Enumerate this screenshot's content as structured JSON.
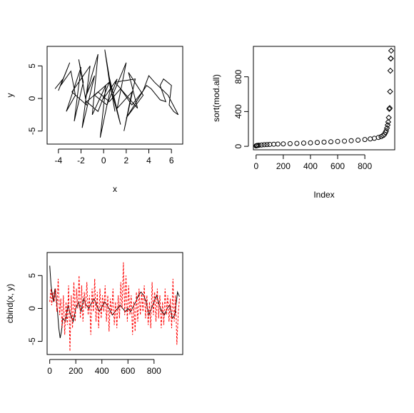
{
  "chart_data": [
    {
      "id": "p1",
      "type": "line",
      "xlabel": "x",
      "ylabel": "y",
      "xlim": [
        -5,
        7
      ],
      "ylim": [
        -7,
        8
      ],
      "xticks": [
        -4,
        -2,
        0,
        2,
        4,
        6
      ],
      "yticks": [
        -5,
        0,
        5
      ],
      "series": [
        {
          "color": "#000000",
          "points": [
            [
              -4.3,
              1.5
            ],
            [
              -3.6,
              3.0
            ],
            [
              -4.0,
              1.2
            ],
            [
              -3.0,
              5.5
            ],
            [
              -3.8,
              2.0
            ],
            [
              -2.9,
              4.2
            ],
            [
              -2.5,
              0.5
            ],
            [
              -3.3,
              -2.0
            ],
            [
              -2.0,
              4.8
            ],
            [
              -2.6,
              -3.5
            ],
            [
              -1.8,
              2.5
            ],
            [
              -2.2,
              6.0
            ],
            [
              -1.5,
              -1.0
            ],
            [
              -2.8,
              1.0
            ],
            [
              -1.2,
              5.0
            ],
            [
              -1.9,
              -4.5
            ],
            [
              -0.8,
              3.5
            ],
            [
              -1.6,
              0.2
            ],
            [
              -0.5,
              6.8
            ],
            [
              -1.0,
              -2.5
            ],
            [
              0.2,
              2.0
            ],
            [
              -0.3,
              -6.0
            ],
            [
              0.6,
              1.5
            ],
            [
              0.1,
              7.5
            ],
            [
              1.0,
              -2.0
            ],
            [
              0.4,
              4.0
            ],
            [
              1.5,
              -4.0
            ],
            [
              0.8,
              0.5
            ],
            [
              2.0,
              5.5
            ],
            [
              1.2,
              -1.5
            ],
            [
              2.5,
              1.0
            ],
            [
              1.8,
              -5.0
            ],
            [
              2.8,
              3.0
            ],
            [
              1.0,
              2.5
            ],
            [
              3.0,
              -1.5
            ],
            [
              2.2,
              4.0
            ],
            [
              3.5,
              0.5
            ],
            [
              2.0,
              -3.0
            ],
            [
              3.8,
              2.0
            ],
            [
              4.2,
              1.5
            ],
            [
              5.0,
              -0.2
            ],
            [
              5.5,
              -0.5
            ],
            [
              5.0,
              2.0
            ],
            [
              5.3,
              3.0
            ],
            [
              6.0,
              2.0
            ],
            [
              5.8,
              -1.0
            ],
            [
              6.2,
              -2.0
            ],
            [
              6.6,
              -2.5
            ],
            [
              5.7,
              0.5
            ],
            [
              4.5,
              2.5
            ],
            [
              4.0,
              3.5
            ],
            [
              3.5,
              1.2
            ],
            [
              2.5,
              -1.0
            ],
            [
              1.5,
              1.5
            ],
            [
              0.5,
              -0.5
            ],
            [
              -0.5,
              1.0
            ],
            [
              -1.5,
              -0.5
            ],
            [
              -0.5,
              -2.0
            ],
            [
              0.5,
              2.5
            ],
            [
              -0.8,
              0.5
            ],
            [
              0.3,
              -1.0
            ],
            [
              1.2,
              3.0
            ],
            [
              0.0,
              0.0
            ]
          ]
        }
      ]
    },
    {
      "id": "p2",
      "type": "scatter",
      "xlabel": "Index",
      "ylabel": "sort(mod.all)",
      "xlim": [
        -20,
        1020
      ],
      "ylim": [
        -40,
        1150
      ],
      "xticks": [
        0,
        200,
        400,
        600,
        800
      ],
      "yticks": [
        0,
        400,
        800
      ],
      "marker": "circle-left diamond-right",
      "series": [
        {
          "color": "#000000",
          "points": [
            [
              0,
              5
            ],
            [
              5,
              8
            ],
            [
              10,
              10
            ],
            [
              20,
              12
            ],
            [
              40,
              15
            ],
            [
              60,
              18
            ],
            [
              80,
              20
            ],
            [
              100,
              22
            ],
            [
              130,
              24
            ],
            [
              160,
              26
            ],
            [
              200,
              28
            ],
            [
              250,
              31
            ],
            [
              300,
              34
            ],
            [
              350,
              37
            ],
            [
              400,
              40
            ],
            [
              450,
              44
            ],
            [
              500,
              48
            ],
            [
              550,
              52
            ],
            [
              600,
              56
            ],
            [
              650,
              60
            ],
            [
              700,
              65
            ],
            [
              750,
              71
            ],
            [
              800,
              78
            ],
            [
              840,
              85
            ],
            [
              870,
              92
            ],
            [
              900,
              102
            ],
            [
              920,
              112
            ],
            [
              935,
              125
            ],
            [
              945,
              140
            ],
            [
              952,
              160
            ],
            [
              958,
              180
            ],
            [
              963,
              210
            ],
            [
              968,
              245
            ],
            [
              972,
              280
            ],
            [
              976,
              330
            ],
            [
              980,
              430
            ],
            [
              983,
              440
            ],
            [
              986,
              630
            ],
            [
              988,
              870
            ],
            [
              990,
              1010
            ],
            [
              992,
              1010
            ],
            [
              994,
              1100
            ]
          ]
        }
      ]
    },
    {
      "id": "p3",
      "type": "line",
      "xlabel": "",
      "ylabel": "cbind(x, y)",
      "xlim": [
        -20,
        1020
      ],
      "ylim": [
        -7,
        8.5
      ],
      "xticks": [
        0,
        200,
        400,
        600,
        800
      ],
      "yticks": [
        -5,
        0,
        5
      ],
      "series": [
        {
          "color": "#000000",
          "points": [
            [
              0,
              6.5
            ],
            [
              10,
              3.5
            ],
            [
              20,
              2.0
            ],
            [
              30,
              1.0
            ],
            [
              40,
              3.0
            ],
            [
              50,
              1.5
            ],
            [
              60,
              -0.5
            ],
            [
              70,
              -3.0
            ],
            [
              80,
              -4.5
            ],
            [
              90,
              -3.5
            ],
            [
              100,
              -1.5
            ],
            [
              120,
              -2.0
            ],
            [
              140,
              0.5
            ],
            [
              160,
              -1.0
            ],
            [
              180,
              -2.0
            ],
            [
              200,
              0.0
            ],
            [
              220,
              1.0
            ],
            [
              240,
              -0.5
            ],
            [
              260,
              1.5
            ],
            [
              280,
              0.5
            ],
            [
              300,
              0.0
            ],
            [
              320,
              0.8
            ],
            [
              340,
              1.5
            ],
            [
              360,
              0.5
            ],
            [
              380,
              -0.5
            ],
            [
              400,
              0.2
            ],
            [
              420,
              1.0
            ],
            [
              440,
              0.5
            ],
            [
              460,
              -0.2
            ],
            [
              480,
              -1.0
            ],
            [
              500,
              -0.5
            ],
            [
              520,
              0.0
            ],
            [
              540,
              0.5
            ],
            [
              560,
              0.0
            ],
            [
              580,
              -0.5
            ],
            [
              600,
              0.0
            ],
            [
              620,
              -0.5
            ],
            [
              640,
              0.3
            ],
            [
              660,
              1.0
            ],
            [
              680,
              2.0
            ],
            [
              700,
              2.5
            ],
            [
              720,
              2.0
            ],
            [
              740,
              1.0
            ],
            [
              760,
              -1.0
            ],
            [
              780,
              0.0
            ],
            [
              800,
              1.0
            ],
            [
              820,
              2.0
            ],
            [
              840,
              0.5
            ],
            [
              860,
              -0.5
            ],
            [
              880,
              -1.0
            ],
            [
              900,
              0.0
            ],
            [
              920,
              0.5
            ],
            [
              940,
              -1.5
            ],
            [
              960,
              -1.0
            ],
            [
              980,
              2.5
            ],
            [
              995,
              1.8
            ]
          ]
        },
        {
          "color": "#ff0000",
          "points": [
            [
              0,
              1.0
            ],
            [
              10,
              3.0
            ],
            [
              15,
              0.5
            ],
            [
              25,
              2.5
            ],
            [
              35,
              1.0
            ],
            [
              45,
              3.0
            ],
            [
              55,
              -0.5
            ],
            [
              65,
              4.5
            ],
            [
              75,
              -1.0
            ],
            [
              85,
              1.5
            ],
            [
              95,
              -3.0
            ],
            [
              105,
              2.0
            ],
            [
              115,
              -4.0
            ],
            [
              125,
              1.0
            ],
            [
              135,
              -2.5
            ],
            [
              145,
              3.5
            ],
            [
              155,
              -6.5
            ],
            [
              165,
              2.0
            ],
            [
              175,
              -3.0
            ],
            [
              185,
              4.0
            ],
            [
              195,
              -2.0
            ],
            [
              205,
              3.0
            ],
            [
              215,
              0.0
            ],
            [
              225,
              5.0
            ],
            [
              235,
              -1.5
            ],
            [
              245,
              3.5
            ],
            [
              255,
              -2.0
            ],
            [
              265,
              2.5
            ],
            [
              275,
              0.0
            ],
            [
              285,
              4.0
            ],
            [
              295,
              -1.0
            ],
            [
              305,
              2.0
            ],
            [
              315,
              -4.0
            ],
            [
              325,
              3.0
            ],
            [
              335,
              -0.5
            ],
            [
              345,
              4.5
            ],
            [
              355,
              -2.0
            ],
            [
              365,
              2.5
            ],
            [
              375,
              -3.0
            ],
            [
              385,
              3.0
            ],
            [
              395,
              -1.5
            ],
            [
              405,
              2.0
            ],
            [
              415,
              -0.5
            ],
            [
              425,
              3.5
            ],
            [
              435,
              -2.0
            ],
            [
              445,
              2.0
            ],
            [
              455,
              -3.5
            ],
            [
              465,
              1.5
            ],
            [
              475,
              -1.0
            ],
            [
              485,
              3.0
            ],
            [
              495,
              -2.5
            ],
            [
              505,
              1.0
            ],
            [
              515,
              -3.0
            ],
            [
              525,
              2.0
            ],
            [
              535,
              -1.5
            ],
            [
              545,
              4.0
            ],
            [
              555,
              0.0
            ],
            [
              565,
              7.0
            ],
            [
              575,
              -1.0
            ],
            [
              585,
              5.0
            ],
            [
              595,
              -2.0
            ],
            [
              605,
              3.5
            ],
            [
              615,
              -1.0
            ],
            [
              625,
              2.0
            ],
            [
              635,
              -4.0
            ],
            [
              645,
              1.0
            ],
            [
              655,
              -3.5
            ],
            [
              665,
              2.5
            ],
            [
              675,
              -2.0
            ],
            [
              685,
              3.0
            ],
            [
              695,
              -1.0
            ],
            [
              705,
              2.5
            ],
            [
              715,
              -0.5
            ],
            [
              725,
              3.5
            ],
            [
              735,
              -1.5
            ],
            [
              745,
              2.0
            ],
            [
              755,
              -2.5
            ],
            [
              765,
              1.0
            ],
            [
              775,
              -3.0
            ],
            [
              785,
              4.0
            ],
            [
              795,
              -1.0
            ],
            [
              805,
              2.5
            ],
            [
              815,
              -2.0
            ],
            [
              825,
              3.0
            ],
            [
              835,
              -1.5
            ],
            [
              845,
              2.0
            ],
            [
              855,
              -3.0
            ],
            [
              865,
              1.0
            ],
            [
              875,
              -2.5
            ],
            [
              885,
              3.0
            ],
            [
              895,
              -1.0
            ],
            [
              905,
              2.0
            ],
            [
              915,
              -2.0
            ],
            [
              925,
              1.5
            ],
            [
              935,
              -3.0
            ],
            [
              945,
              4.5
            ],
            [
              955,
              -2.0
            ],
            [
              965,
              2.0
            ],
            [
              975,
              -5.5
            ],
            [
              985,
              -1.0
            ],
            [
              995,
              1.5
            ]
          ]
        }
      ]
    }
  ]
}
